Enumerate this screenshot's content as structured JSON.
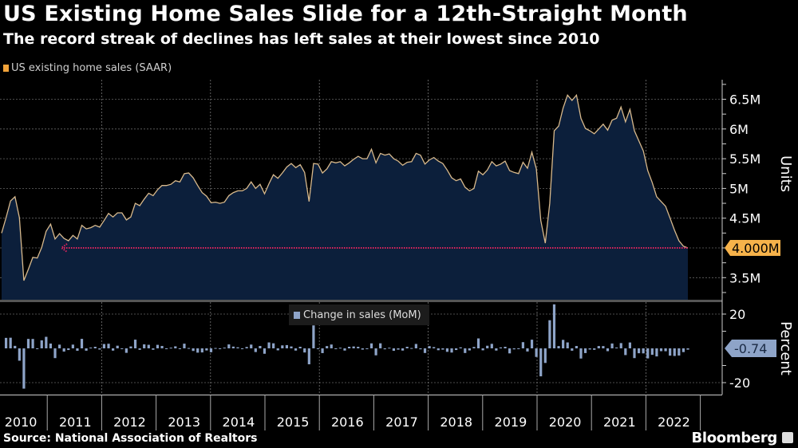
{
  "header": {
    "title": "US Existing Home Sales Slide for a 12th-Straight Month",
    "subtitle": "The record streak of declines has left sales at their lowest since 2010"
  },
  "footer": {
    "source": "Source: National Association of Realtors",
    "brand": "Bloomberg"
  },
  "colors": {
    "background": "#000000",
    "area_fill": "#0c1f3b",
    "line": "#d8b98c",
    "reference_line": "#e0245e",
    "last_value_badge": "#f6b24a",
    "bars": "#8ea4c8",
    "mom_badge": "#8ea4c8"
  },
  "chart_data": [
    {
      "type": "area",
      "title": "US existing home sales (SAAR)",
      "legend": "US existing home sales (SAAR)",
      "legend_placement": "top-left",
      "ylabel": "Units",
      "ylim": [
        3.15,
        6.85
      ],
      "yticks": [
        3.5,
        4.0,
        4.5,
        5.0,
        5.5,
        6.0,
        6.5
      ],
      "ytick_labels": [
        "3.5M",
        "4M",
        "4.5M",
        "5M",
        "5.5M",
        "6M",
        "6.5M"
      ],
      "units": "millions",
      "start": "2010-02",
      "end": "2022-12",
      "values": [
        4.25,
        4.51,
        4.79,
        4.86,
        4.51,
        3.45,
        3.64,
        3.84,
        3.83,
        4.01,
        4.28,
        4.4,
        4.15,
        4.24,
        4.16,
        4.12,
        4.21,
        4.15,
        4.38,
        4.32,
        4.34,
        4.38,
        4.35,
        4.46,
        4.58,
        4.52,
        4.59,
        4.59,
        4.47,
        4.52,
        4.75,
        4.71,
        4.82,
        4.92,
        4.88,
        4.98,
        5.05,
        5.05,
        5.07,
        5.13,
        5.11,
        5.25,
        5.26,
        5.18,
        5.05,
        4.93,
        4.87,
        4.76,
        4.77,
        4.75,
        4.77,
        4.88,
        4.93,
        4.96,
        4.96,
        5.0,
        5.11,
        5.0,
        5.07,
        4.91,
        5.08,
        5.23,
        5.17,
        5.26,
        5.36,
        5.42,
        5.35,
        5.4,
        5.27,
        4.78,
        5.42,
        5.41,
        5.26,
        5.33,
        5.45,
        5.43,
        5.45,
        5.38,
        5.43,
        5.49,
        5.54,
        5.5,
        5.5,
        5.66,
        5.43,
        5.59,
        5.56,
        5.58,
        5.5,
        5.46,
        5.39,
        5.44,
        5.45,
        5.59,
        5.56,
        5.41,
        5.48,
        5.52,
        5.46,
        5.42,
        5.31,
        5.18,
        5.13,
        5.16,
        5.02,
        4.96,
        5.0,
        5.29,
        5.23,
        5.31,
        5.45,
        5.38,
        5.41,
        5.46,
        5.3,
        5.27,
        5.25,
        5.44,
        5.34,
        5.61,
        5.33,
        4.46,
        4.08,
        4.75,
        5.97,
        6.05,
        6.35,
        6.57,
        6.48,
        6.57,
        6.18,
        6.01,
        5.97,
        5.92,
        6.0,
        6.08,
        5.98,
        6.15,
        6.18,
        6.37,
        6.12,
        6.33,
        5.97,
        5.8,
        5.63,
        5.3,
        5.1,
        4.86,
        4.78,
        4.7,
        4.5,
        4.3,
        4.12,
        4.03,
        4.0
      ],
      "last_value_label": "4.000M",
      "reference_line": {
        "value": 4.0,
        "style": "dotted arrow",
        "from": "2011-04"
      }
    },
    {
      "type": "bar",
      "title": "Change in sales (MoM)",
      "legend": "Change in sales (MoM)",
      "legend_placement": "top-center",
      "ylabel": "Percent",
      "ylim": [
        -27,
        27
      ],
      "yticks": [
        -20,
        0,
        20
      ],
      "ytick_labels": [
        "-20",
        "",
        "20"
      ],
      "values_note": "month-over-month % change of the series above",
      "last_value_label": "-0.74"
    }
  ],
  "xaxis": {
    "years": [
      "2010",
      "2011",
      "2012",
      "2013",
      "2014",
      "2015",
      "2016",
      "2017",
      "2018",
      "2019",
      "2020",
      "2021",
      "2022"
    ]
  }
}
